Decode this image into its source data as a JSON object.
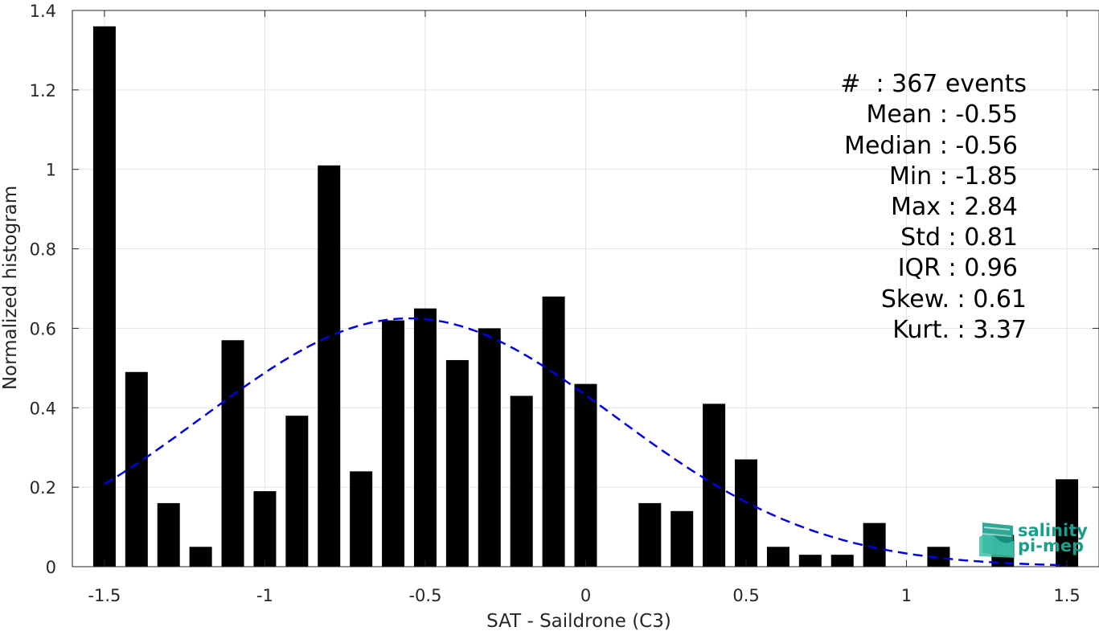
{
  "chart_data": {
    "type": "bar",
    "xlabel": "SAT - Saildrone (C3)",
    "ylabel": "Normalized histogram",
    "xlim": [
      -1.6,
      1.6
    ],
    "ylim": [
      0,
      1.4
    ],
    "xticks": [
      -1.5,
      -1,
      -0.5,
      0,
      0.5,
      1,
      1.5
    ],
    "xtick_labels": [
      "-1.5",
      "-1",
      "-0.5",
      "0",
      "0.5",
      "1",
      "1.5"
    ],
    "yticks": [
      0,
      0.2,
      0.4,
      0.6,
      0.8,
      1,
      1.2,
      1.4
    ],
    "ytick_labels": [
      "0",
      "0.2",
      "0.4",
      "0.6",
      "0.8",
      "1",
      "1.2",
      "1.4"
    ],
    "grid": true,
    "bar_color": "#000000",
    "bins": [
      {
        "x": -1.5,
        "y": 1.36
      },
      {
        "x": -1.4,
        "y": 0.49
      },
      {
        "x": -1.3,
        "y": 0.16
      },
      {
        "x": -1.2,
        "y": 0.05
      },
      {
        "x": -1.1,
        "y": 0.57
      },
      {
        "x": -1.0,
        "y": 0.19
      },
      {
        "x": -0.9,
        "y": 0.38
      },
      {
        "x": -0.8,
        "y": 1.01
      },
      {
        "x": -0.7,
        "y": 0.24
      },
      {
        "x": -0.6,
        "y": 0.62
      },
      {
        "x": -0.5,
        "y": 0.65
      },
      {
        "x": -0.4,
        "y": 0.52
      },
      {
        "x": -0.3,
        "y": 0.6
      },
      {
        "x": -0.2,
        "y": 0.43
      },
      {
        "x": -0.1,
        "y": 0.68
      },
      {
        "x": 0.0,
        "y": 0.46
      },
      {
        "x": 0.1,
        "y": 0.0
      },
      {
        "x": 0.2,
        "y": 0.16
      },
      {
        "x": 0.3,
        "y": 0.14
      },
      {
        "x": 0.4,
        "y": 0.41
      },
      {
        "x": 0.5,
        "y": 0.27
      },
      {
        "x": 0.6,
        "y": 0.05
      },
      {
        "x": 0.7,
        "y": 0.03
      },
      {
        "x": 0.8,
        "y": 0.03
      },
      {
        "x": 0.9,
        "y": 0.11
      },
      {
        "x": 1.0,
        "y": 0.0
      },
      {
        "x": 1.1,
        "y": 0.05
      },
      {
        "x": 1.2,
        "y": 0.0
      },
      {
        "x": 1.3,
        "y": 0.08
      },
      {
        "x": 1.4,
        "y": 0.0
      },
      {
        "x": 1.5,
        "y": 0.22
      }
    ],
    "fit_curve": {
      "style": "dashed",
      "color": "#0000e6",
      "mean": -0.55,
      "std": 0.64,
      "amplitude": 0.625,
      "x_range": [
        -1.5,
        1.5
      ]
    }
  },
  "stats": {
    "line1": "#  : 367 events",
    "line2": "Mean : -0.55",
    "line3": "Median : -0.56",
    "line4": "Min : -1.85",
    "line5": "Max : 2.84",
    "line6": "Std : 0.81",
    "line7": "IQR : 0.96",
    "line8": "Skew. : 0.61",
    "line9": "Kurt. : 3.37"
  },
  "logo": {
    "line1": "salinity",
    "line2": "pi-mep",
    "color": "#1a9e8c"
  }
}
